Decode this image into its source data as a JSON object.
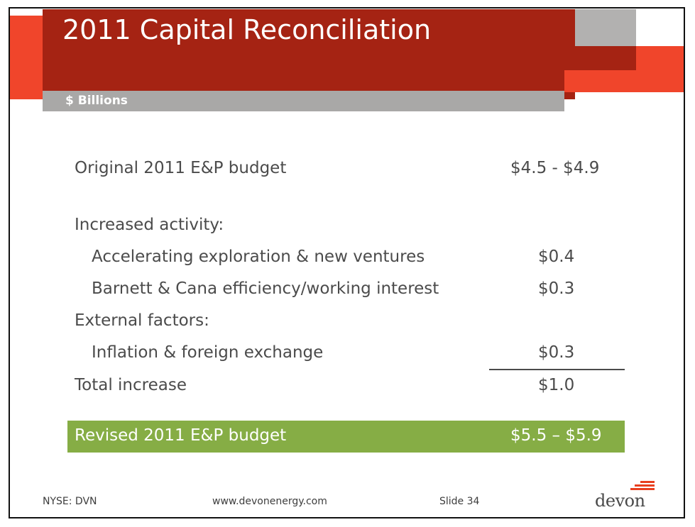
{
  "slide": {
    "title": "2011 Capital Reconciliation",
    "subtitle": "$ Billions",
    "rows": [
      {
        "label": "Original 2011 E&P budget",
        "value": "$4.5 - $4.9"
      },
      {
        "label": "Increased activity:",
        "value": ""
      },
      {
        "label": "Accelerating exploration & new ventures",
        "value": "$0.4"
      },
      {
        "label": "Barnett & Cana efficiency/working interest",
        "value": "$0.3"
      },
      {
        "label": "External factors:",
        "value": ""
      },
      {
        "label": "Inflation & foreign exchange",
        "value": "$0.3"
      },
      {
        "label": "Total increase",
        "value": "$1.0"
      }
    ],
    "revised": {
      "label": "Revised 2011 E&P budget",
      "value": "$5.5 – $5.9"
    }
  },
  "footer": {
    "ticker": "NYSE: DVN",
    "website": "www.devonenergy.com",
    "slide_number": "Slide 34",
    "logo_text": "devon"
  },
  "colors": {
    "title_bar": "#a52313",
    "accent_orange": "#f0452b",
    "subtitle_bar": "#a9a8a7",
    "revised_bar": "#86ad45",
    "body_text": "#4b4b4b"
  }
}
